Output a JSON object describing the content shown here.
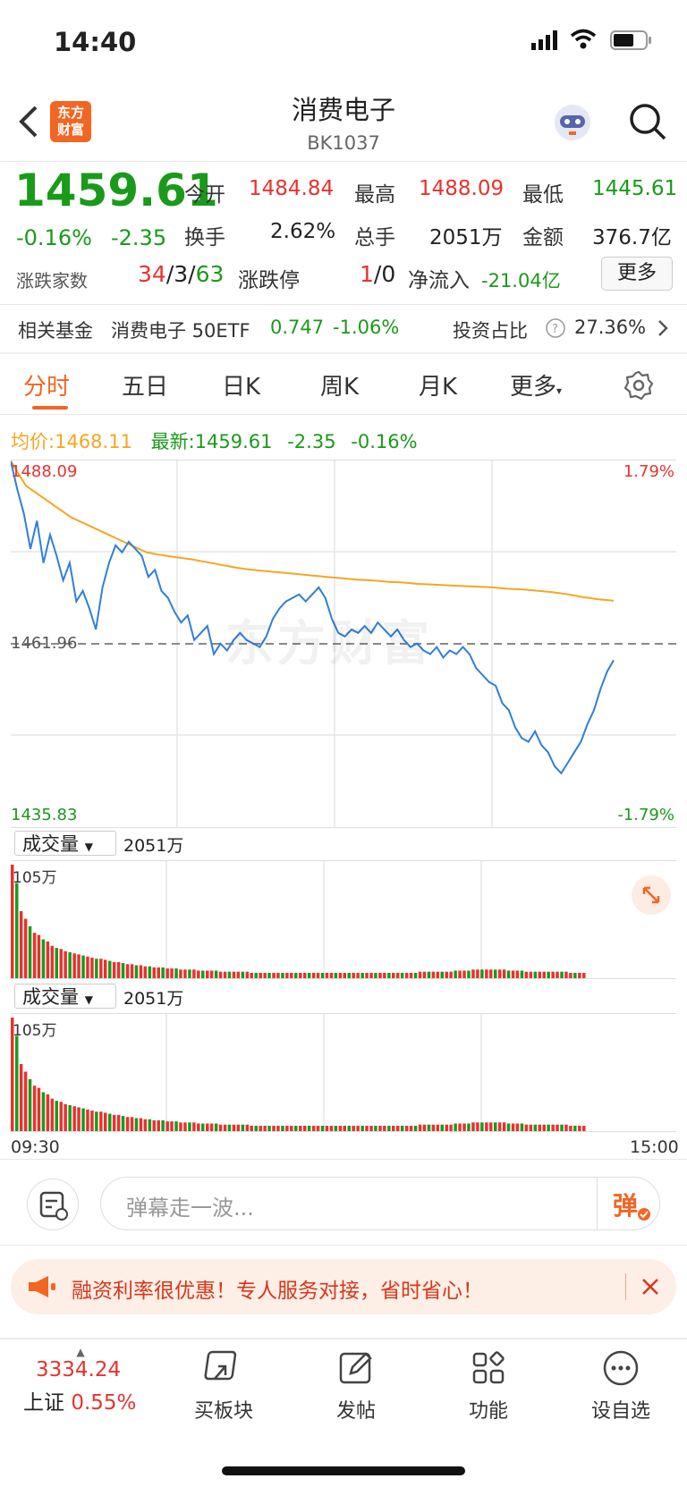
{
  "status_bar": {
    "time": "14:40"
  },
  "nav": {
    "title": "消费电子",
    "code": "BK1037",
    "logo_line1": "东方",
    "logo_line2": "财富"
  },
  "quote": {
    "price": "1459.61",
    "change_pct": "-0.16%",
    "change": "-2.35",
    "open_label": "今开",
    "open": "1484.84",
    "high_label": "最高",
    "high": "1488.09",
    "low_label": "最低",
    "low": "1445.61",
    "turnover_label": "换手",
    "turnover": "2.62%",
    "volume_label": "总手",
    "volume": "2051万",
    "amount_label": "金额",
    "amount": "376.7亿",
    "updown_label": "涨跌家数",
    "up": "34",
    "flat": "3",
    "down": "63",
    "limit_label": "涨跌停",
    "limit_up": "1",
    "limit_down": "0",
    "netflow_label": "净流入",
    "netflow": "-21.04亿",
    "more_label": "更多"
  },
  "fund": {
    "label": "相关基金",
    "name": "消费电子 50ETF",
    "price": "0.747",
    "change": "-1.06%",
    "ratio_label": "投资占比",
    "ratio": "27.36%"
  },
  "tabs": [
    "分时",
    "五日",
    "日K",
    "周K",
    "月K",
    "更多"
  ],
  "active_tab": "分时",
  "legend": {
    "avg_label": "均价:",
    "avg": "1468.11",
    "latest_label": "最新:",
    "latest": "1459.61",
    "change": "-2.35",
    "change_pct": "-0.16%"
  },
  "chart_data": {
    "type": "line",
    "y_max_label": "1488.09",
    "y_ref_label": "1461.96",
    "y_min_label": "1435.83",
    "pct_max_label": "1.79%",
    "pct_min_label": "-1.79%",
    "ylim": [
      1435.83,
      1488.09
    ],
    "reference": 1461.96,
    "x_start": "09:30",
    "x_end": "15:00",
    "watermark": "东方财富",
    "series": [
      {
        "values": [
          1488.0,
          1484.0,
          1480.5,
          1475.5,
          1479.5,
          1473.5,
          1477.5,
          1474.5,
          1471.0,
          1473.5,
          1468.0,
          1469.5,
          1467.0,
          1464.0,
          1470.0,
          1473.5,
          1476.0,
          1475.0,
          1476.5,
          1475.5,
          1474.5,
          1471.5,
          1472.5,
          1469.5,
          1468.5,
          1466.5,
          1465.0,
          1466.0,
          1462.5,
          1463.5,
          1464.5,
          1460.5,
          1462.0,
          1461.0,
          1462.5,
          1463.5,
          1462.5,
          1462.0,
          1461.5,
          1463.0,
          1465.5,
          1467.0,
          1468.0,
          1468.5,
          1469.0,
          1468.0,
          1469.0,
          1470.0,
          1468.5,
          1465.5,
          1463.5,
          1463.0,
          1464.0,
          1463.5,
          1464.5,
          1463.5,
          1465.0,
          1464.0,
          1463.0,
          1464.0,
          1462.5,
          1461.5,
          1462.0,
          1461.0,
          1460.5,
          1461.5,
          1460.0,
          1461.0,
          1460.5,
          1461.5,
          1460.5,
          1458.5,
          1457.5,
          1456.5,
          1456.0,
          1453.5,
          1452.5,
          1450.0,
          1448.5,
          1448.0,
          1449.5,
          1447.5,
          1446.5,
          1444.5,
          1443.5,
          1445.0,
          1446.5,
          1448.0,
          1450.5,
          1452.5,
          1455.5,
          1458.0,
          1459.61
        ]
      },
      {
        "values": [
          1488.0,
          1484.5,
          1483.0,
          1481.5,
          1480.0,
          1479.0,
          1478.0,
          1477.0,
          1476.0,
          1475.0,
          1474.6,
          1474.3,
          1474.0,
          1473.6,
          1473.2,
          1472.8,
          1472.5,
          1472.3,
          1472.1,
          1471.9,
          1471.7,
          1471.5,
          1471.3,
          1471.1,
          1471.0,
          1470.8,
          1470.7,
          1470.5,
          1470.4,
          1470.3,
          1470.2,
          1470.1,
          1470.0,
          1469.8,
          1469.7,
          1469.5,
          1469.3,
          1469.0,
          1468.6,
          1468.3,
          1468.11
        ]
      }
    ],
    "volume": {
      "label": "成交量",
      "total": "2051万",
      "max_label": "105万",
      "values": [
        105,
        88,
        62,
        55,
        48,
        42,
        40,
        36,
        34,
        30,
        28,
        27,
        25,
        24,
        23,
        22,
        21,
        20,
        19,
        18,
        18,
        17,
        16,
        15,
        15,
        14,
        13,
        13,
        12,
        12,
        11,
        11,
        10,
        10,
        10,
        9,
        9,
        9,
        8,
        8,
        8,
        8,
        7,
        7,
        7,
        7,
        7,
        6,
        6,
        6,
        6,
        6,
        6,
        6,
        5,
        5,
        5,
        5,
        5,
        5,
        5,
        5,
        5,
        5,
        5,
        5,
        5,
        5,
        5,
        5,
        5,
        5,
        5,
        5,
        5,
        5,
        5,
        5,
        5,
        5,
        5,
        5,
        5,
        5,
        5,
        5,
        5,
        5,
        5,
        5,
        5,
        5,
        6,
        6,
        6,
        6,
        6,
        6,
        6,
        6,
        7,
        7,
        7,
        7,
        8,
        8,
        8,
        8,
        8,
        8,
        8,
        8,
        7,
        7,
        7,
        7,
        6,
        6,
        6,
        6,
        6,
        6,
        6,
        6,
        6,
        6,
        5,
        5,
        5,
        5
      ]
    }
  },
  "chat": {
    "placeholder": "弹幕走一波...",
    "send_label": "弹"
  },
  "banner": {
    "text": "融资利率很优惠！专人服务对接，省时省心！"
  },
  "bottom": {
    "index_value": "3334.24",
    "index_name": "上证",
    "index_pct": "0.55%",
    "items": [
      "买板块",
      "发帖",
      "功能",
      "设自选"
    ]
  },
  "colors": {
    "up": "#e8322e",
    "down": "#1a9a1a",
    "avg_line": "#f5a623",
    "price_line": "#2f7fd6",
    "accent": "#f26522"
  }
}
